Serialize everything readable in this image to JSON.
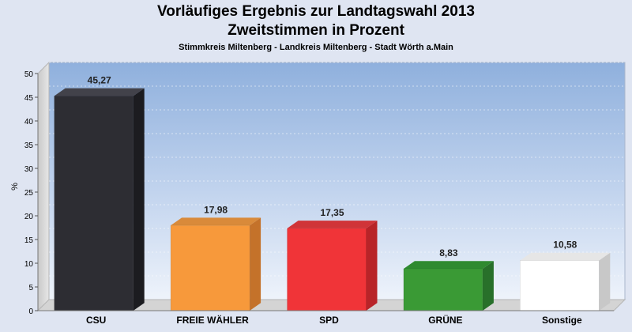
{
  "header": {
    "title_line1": "Vorläufiges Ergebnis zur Landtagswahl 2013",
    "title_line2": "Zweitstimmen in Prozent",
    "subtitle": "Stimmkreis Miltenberg - Landkreis Miltenberg - Stadt Wörth a.Main"
  },
  "chart_data": {
    "type": "bar",
    "title": "Vorläufiges Ergebnis zur Landtagswahl 2013 Zweitstimmen in Prozent",
    "subtitle": "Stimmkreis Miltenberg - Landkreis Miltenberg - Stadt Wörth a.Main",
    "xlabel": "",
    "ylabel": "%",
    "ylim": [
      0,
      50
    ],
    "yticks": [
      0,
      5,
      10,
      15,
      20,
      25,
      30,
      35,
      40,
      45,
      50
    ],
    "grid": true,
    "categories": [
      "CSU",
      "FREIE WÄHLER",
      "SPD",
      "GRÜNE",
      "Sonstige"
    ],
    "values": [
      45.27,
      17.98,
      17.35,
      8.83,
      10.58
    ],
    "value_labels": [
      "45,27",
      "17,98",
      "17,35",
      "8,83",
      "10,58"
    ],
    "colors": [
      "#2d2d33",
      "#f7993b",
      "#f03438",
      "#3a9a35",
      "#ffffff"
    ],
    "side_colors": [
      "#1c1c20",
      "#c4722a",
      "#b82428",
      "#28702a",
      "#c8c8c8"
    ],
    "top_colors": [
      "#42424a",
      "#d98a3a",
      "#d03438",
      "#2f8a30",
      "#e6e6e6"
    ]
  }
}
